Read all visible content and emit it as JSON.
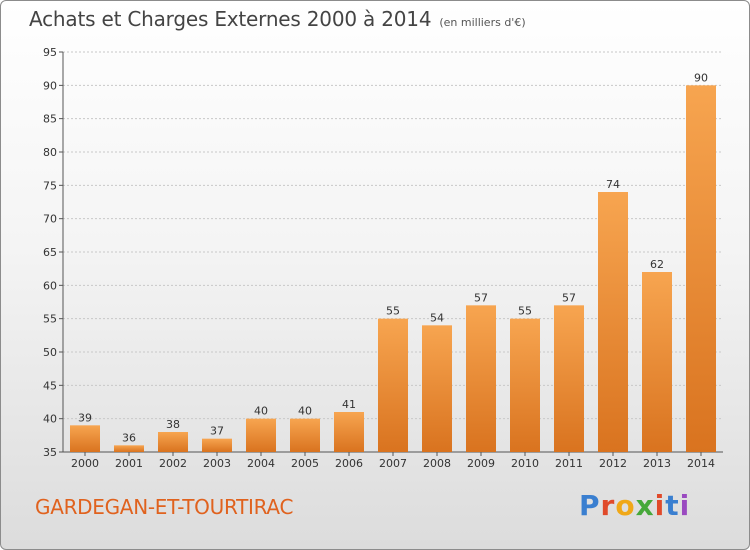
{
  "header": {
    "title": "Achats et Charges Externes 2000 à 2014",
    "unit": "(en milliers d'€)"
  },
  "footer": {
    "commune": "GARDEGAN-ET-TOURTIRAC",
    "logo_text": "Proxiti",
    "logo_colors": [
      "#3a7fd0",
      "#e04a2a",
      "#f0a818",
      "#46a83a",
      "#e04a2a",
      "#3a7fd0",
      "#9a4ac0"
    ]
  },
  "chart_data": {
    "type": "bar",
    "categories": [
      "2000",
      "2001",
      "2002",
      "2003",
      "2004",
      "2005",
      "2006",
      "2007",
      "2008",
      "2009",
      "2010",
      "2011",
      "2012",
      "2013",
      "2014"
    ],
    "values": [
      39,
      36,
      38,
      37,
      40,
      40,
      41,
      55,
      54,
      57,
      55,
      57,
      74,
      62,
      90
    ],
    "ylim": [
      35,
      95
    ],
    "yticks": [
      35,
      40,
      45,
      50,
      55,
      60,
      65,
      70,
      75,
      80,
      85,
      90,
      95
    ],
    "grid": true,
    "bar_color_top": "#f7a550",
    "bar_color_bottom": "#d9731f"
  }
}
